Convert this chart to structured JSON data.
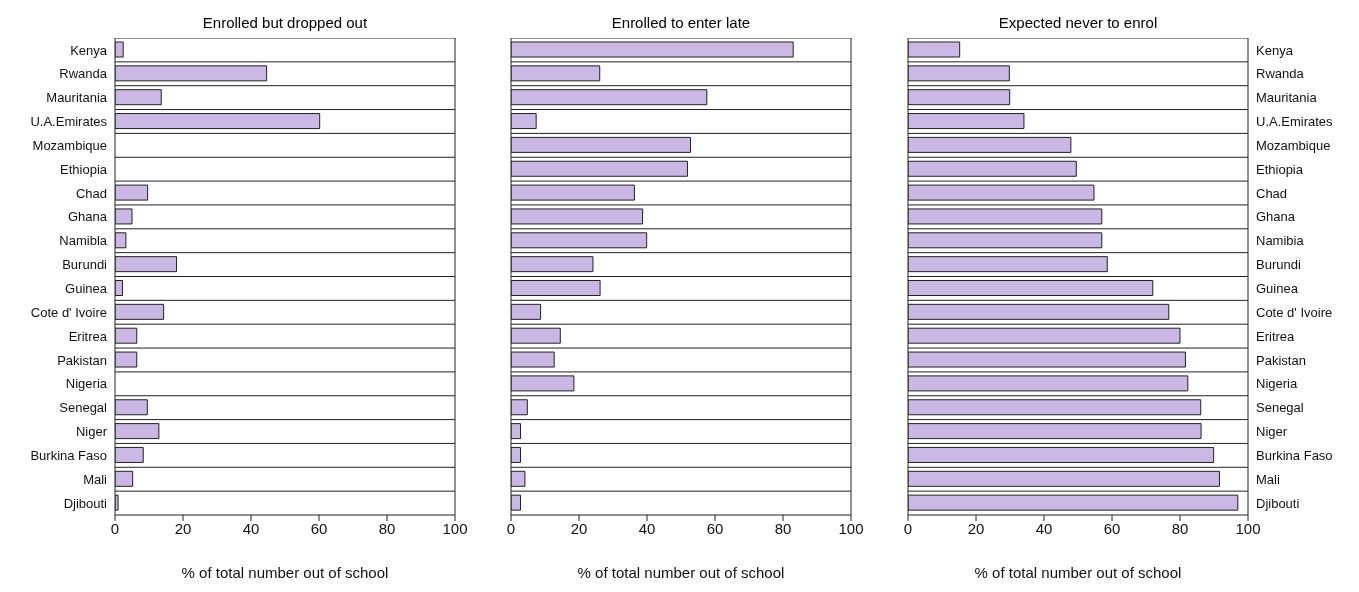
{
  "chart_data": [
    {
      "type": "bar",
      "orientation": "horizontal",
      "title": "Enrolled but dropped out",
      "xlabel": "% of total number out of school",
      "categories": [
        "Kenya",
        "Rwanda",
        "Mauritania",
        "U.A.Emirates",
        "Mozambique",
        "Ethiopia",
        "Chad",
        "Ghana",
        "Namibla",
        "Burundi",
        "Guinea",
        "Cote d' Ivoire",
        "Eritrea",
        "Pakistan",
        "Nigeria",
        "Senegal",
        "Niger",
        "Burkina Faso",
        "Mali",
        "Djibouti"
      ],
      "values": [
        2.4,
        44.6,
        13.6,
        60.2,
        0,
        0,
        9.6,
        5,
        3.2,
        18.1,
        2.2,
        14.3,
        6.4,
        6.4,
        0,
        9.5,
        12.9,
        8.3,
        5.2,
        0.9
      ],
      "color": "#c9b8e3",
      "xlim": [
        0,
        100
      ],
      "xticks": [
        0,
        20,
        40,
        60,
        80,
        100
      ],
      "grid": "y"
    },
    {
      "type": "bar",
      "orientation": "horizontal",
      "title": "Enrolled to enter late",
      "xlabel": "% of total number out of school",
      "categories": [
        null,
        null,
        null,
        null,
        null,
        null,
        null,
        null,
        null,
        null,
        null,
        null,
        null,
        null,
        null,
        null,
        null,
        null,
        null,
        null
      ],
      "values": [
        83,
        26.1,
        57.6,
        7.4,
        52.8,
        51.9,
        36.3,
        38.7,
        39.9,
        24.1,
        26.2,
        8.7,
        14.5,
        12.7,
        18.5,
        4.8,
        2.8,
        2.8,
        4.1,
        2.8
      ],
      "color": "#c9b8e3",
      "xlim": [
        0,
        100
      ],
      "xticks": [
        0,
        20,
        40,
        60,
        80,
        100
      ],
      "grid": "y",
      "tick_labels": "x"
    },
    {
      "type": "bar",
      "orientation": "horizontal",
      "title": "Expected never to enrol",
      "xlabel": "% of total number out of school",
      "categories": [
        "Kenya",
        "Rwanda",
        "Mauritania",
        "U.A.Emirates",
        "Mozambique",
        "Ethiopia",
        "Chad",
        "Ghana",
        "Namibia",
        "Burundi",
        "Guinea",
        "Cote d' Ivoire",
        "Eritrea",
        "Pakistan",
        "Nigeria",
        "Senegal",
        "Niger",
        "Burkina Faso",
        "Mali",
        "Djibouti"
      ],
      "values": [
        15.2,
        29.8,
        29.9,
        34.1,
        47.9,
        49.5,
        54.7,
        57,
        57,
        58.6,
        72,
        76.7,
        80,
        81.6,
        82.3,
        86.1,
        86.2,
        89.9,
        91.6,
        97
      ],
      "color": "#c9b8e3",
      "xlim": [
        0,
        100
      ],
      "xticks": [
        0,
        20,
        40,
        60,
        80,
        100
      ],
      "grid": "y"
    }
  ]
}
